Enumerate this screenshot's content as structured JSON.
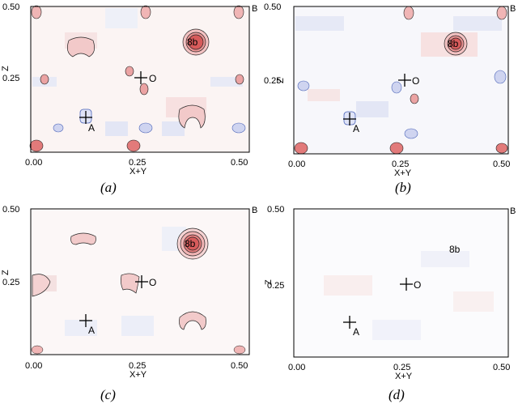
{
  "panels": [
    {
      "id": "a",
      "caption": "(a)",
      "x_ticks": [
        "0.00",
        "0.25",
        "0.50"
      ],
      "y_ticks": [
        "0.50",
        "0.25"
      ],
      "xlabel": "X+Y",
      "ylabel": "Z",
      "corner_label": "B",
      "points": [
        {
          "label": "A",
          "x": 0.125,
          "z": 0.125,
          "marker": "cross"
        },
        {
          "label": "O",
          "x": 0.25,
          "z": 0.25,
          "marker": "cross"
        },
        {
          "label": "8b",
          "x": 0.375,
          "z": 0.375,
          "marker": "peak"
        }
      ],
      "contrast": "strong"
    },
    {
      "id": "b",
      "caption": "(b)",
      "x_ticks": [
        "0.00",
        "0.25",
        "0.50"
      ],
      "y_ticks": [
        "0.50",
        "0.25"
      ],
      "xlabel": "X+Y",
      "ylabel": "Z",
      "corner_label": "B",
      "points": [
        {
          "label": "A",
          "x": 0.125,
          "z": 0.125,
          "marker": "cross"
        },
        {
          "label": "O",
          "x": 0.25,
          "z": 0.25,
          "marker": "cross"
        },
        {
          "label": "8b",
          "x": 0.375,
          "z": 0.375,
          "marker": "peak"
        }
      ],
      "contrast": "strong"
    },
    {
      "id": "c",
      "caption": "(c)",
      "x_ticks": [
        "0.00",
        "0.25",
        "0.50"
      ],
      "y_ticks": [
        "0.50",
        "0.25"
      ],
      "xlabel": "X+Y",
      "ylabel": "Z",
      "corner_label": "B",
      "points": [
        {
          "label": "A",
          "x": 0.125,
          "z": 0.125,
          "marker": "cross"
        },
        {
          "label": "O",
          "x": 0.25,
          "z": 0.25,
          "marker": "cross"
        },
        {
          "label": "8b",
          "x": 0.375,
          "z": 0.375,
          "marker": "peak"
        }
      ],
      "contrast": "medium"
    },
    {
      "id": "d",
      "caption": "(d)",
      "x_ticks": [
        "0.00",
        "0.25",
        "0.50"
      ],
      "y_ticks": [
        "0.50",
        "0.25"
      ],
      "xlabel": "X+Y",
      "ylabel": "Z",
      "corner_label": "B",
      "points": [
        {
          "label": "A",
          "x": 0.125,
          "z": 0.125,
          "marker": "cross"
        },
        {
          "label": "O",
          "x": 0.25,
          "z": 0.25,
          "marker": "cross"
        },
        {
          "label": "8b",
          "x": 0.375,
          "z": 0.375,
          "marker": "none"
        }
      ],
      "contrast": "weak"
    }
  ],
  "colors": {
    "positive": "#d9534f",
    "negative": "#4a63b8",
    "contour": "#222222"
  }
}
